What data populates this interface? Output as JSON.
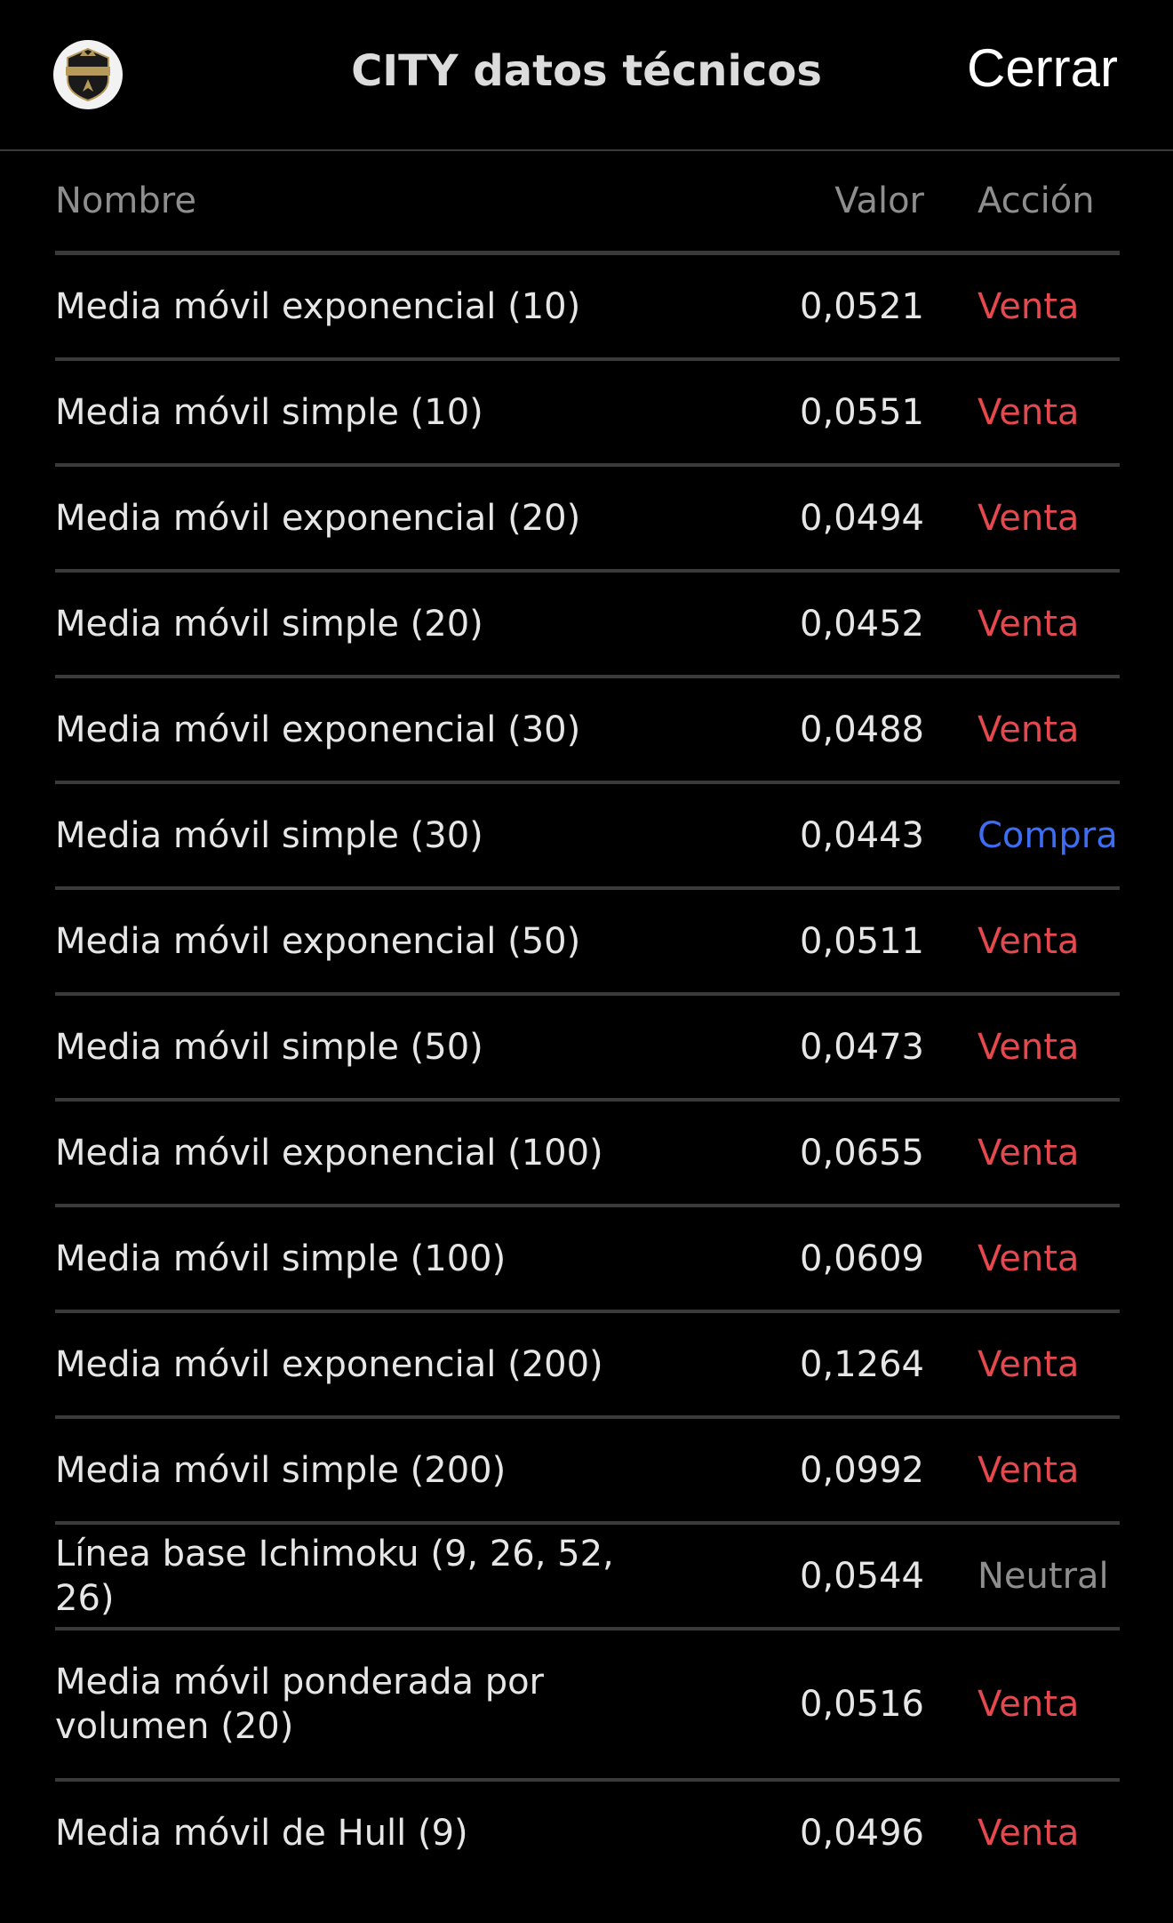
{
  "header": {
    "logo_text": "INTERCITY",
    "title": "CITY datos técnicos",
    "close_label": "Cerrar"
  },
  "columns": {
    "name": "Nombre",
    "value": "Valor",
    "action": "Acción"
  },
  "colors": {
    "Venta": "#e5484d",
    "Compra": "#3d6df2",
    "Neutral": "#8e8e8e"
  },
  "rows": [
    {
      "name": "Media móvil exponencial (10)",
      "value": "0,0521",
      "action": "Venta"
    },
    {
      "name": "Media móvil simple (10)",
      "value": "0,0551",
      "action": "Venta"
    },
    {
      "name": "Media móvil exponencial (20)",
      "value": "0,0494",
      "action": "Venta"
    },
    {
      "name": "Media móvil simple (20)",
      "value": "0,0452",
      "action": "Venta"
    },
    {
      "name": "Media móvil exponencial (30)",
      "value": "0,0488",
      "action": "Venta"
    },
    {
      "name": "Media móvil simple (30)",
      "value": "0,0443",
      "action": "Compra"
    },
    {
      "name": "Media móvil exponencial (50)",
      "value": "0,0511",
      "action": "Venta"
    },
    {
      "name": "Media móvil simple (50)",
      "value": "0,0473",
      "action": "Venta"
    },
    {
      "name": "Media móvil exponencial (100)",
      "value": "0,0655",
      "action": "Venta"
    },
    {
      "name": "Media móvil simple (100)",
      "value": "0,0609",
      "action": "Venta"
    },
    {
      "name": "Media móvil exponencial (200)",
      "value": "0,1264",
      "action": "Venta"
    },
    {
      "name": "Media móvil simple (200)",
      "value": "0,0992",
      "action": "Venta"
    },
    {
      "name": "Línea base Ichimoku (9, 26, 52, 26)",
      "value": "0,0544",
      "action": "Neutral"
    },
    {
      "name": "Media móvil ponderada por volumen (20)",
      "value": "0,0516",
      "action": "Venta"
    },
    {
      "name": "Media móvil de Hull (9)",
      "value": "0,0496",
      "action": "Venta"
    }
  ]
}
